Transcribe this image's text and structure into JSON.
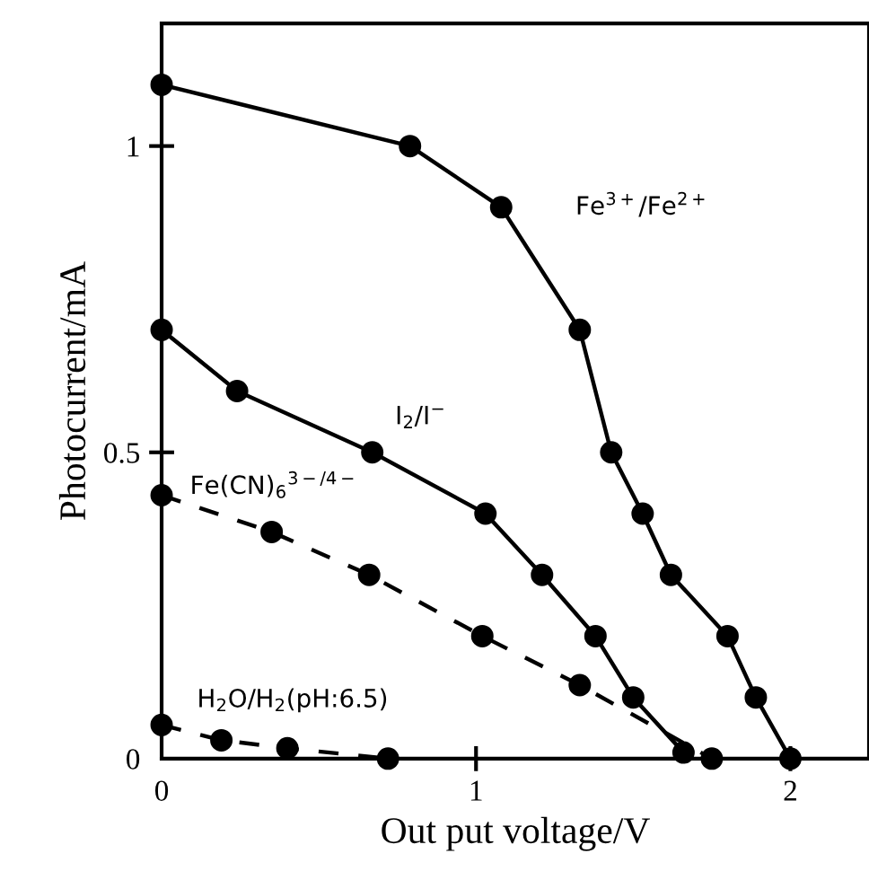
{
  "chart_data": {
    "type": "line",
    "xlabel": "Out put voltage/V",
    "ylabel": "Photocurrent/mA",
    "xlim": [
      0,
      2.25
    ],
    "ylim": [
      0,
      1.2
    ],
    "xticks": [
      0,
      1,
      2
    ],
    "yticks": [
      0,
      0.5,
      1
    ],
    "grid": false,
    "legend": false,
    "marker": "circle",
    "series": [
      {
        "name": "Fe$^{3+}$/Fe$^{2+}$",
        "color": "#000000",
        "line_style": "solid",
        "x": [
          0,
          0.79,
          1.08,
          1.33,
          1.43,
          1.53,
          1.62,
          1.8,
          1.89,
          2.0
        ],
        "values": [
          1.1,
          1.0,
          0.9,
          0.7,
          0.5,
          0.4,
          0.3,
          0.2,
          0.1,
          0
        ]
      },
      {
        "name": "I$_{2}$/I$^{−}$",
        "color": "#000000",
        "line_style": "solid",
        "x": [
          0,
          0.24,
          0.67,
          1.03,
          1.21,
          1.38,
          1.5,
          1.66
        ],
        "values": [
          0.7,
          0.6,
          0.5,
          0.4,
          0.3,
          0.2,
          0.1,
          0.01
        ]
      },
      {
        "name": "Fe(CN)$_{6}$$^{3−/4−}$",
        "color": "#000000",
        "line_style": "dashed",
        "x": [
          0,
          0.35,
          0.66,
          1.02,
          1.33,
          1.75
        ],
        "values": [
          0.43,
          0.37,
          0.3,
          0.2,
          0.12,
          0
        ]
      },
      {
        "name": "H$_{2}$O/H$_{2}$(pH:6.5)",
        "color": "#000000",
        "line_style": "dashed",
        "x": [
          0,
          0.19,
          0.4,
          0.72
        ],
        "values": [
          0.055,
          0.03,
          0.017,
          0
        ]
      }
    ]
  }
}
